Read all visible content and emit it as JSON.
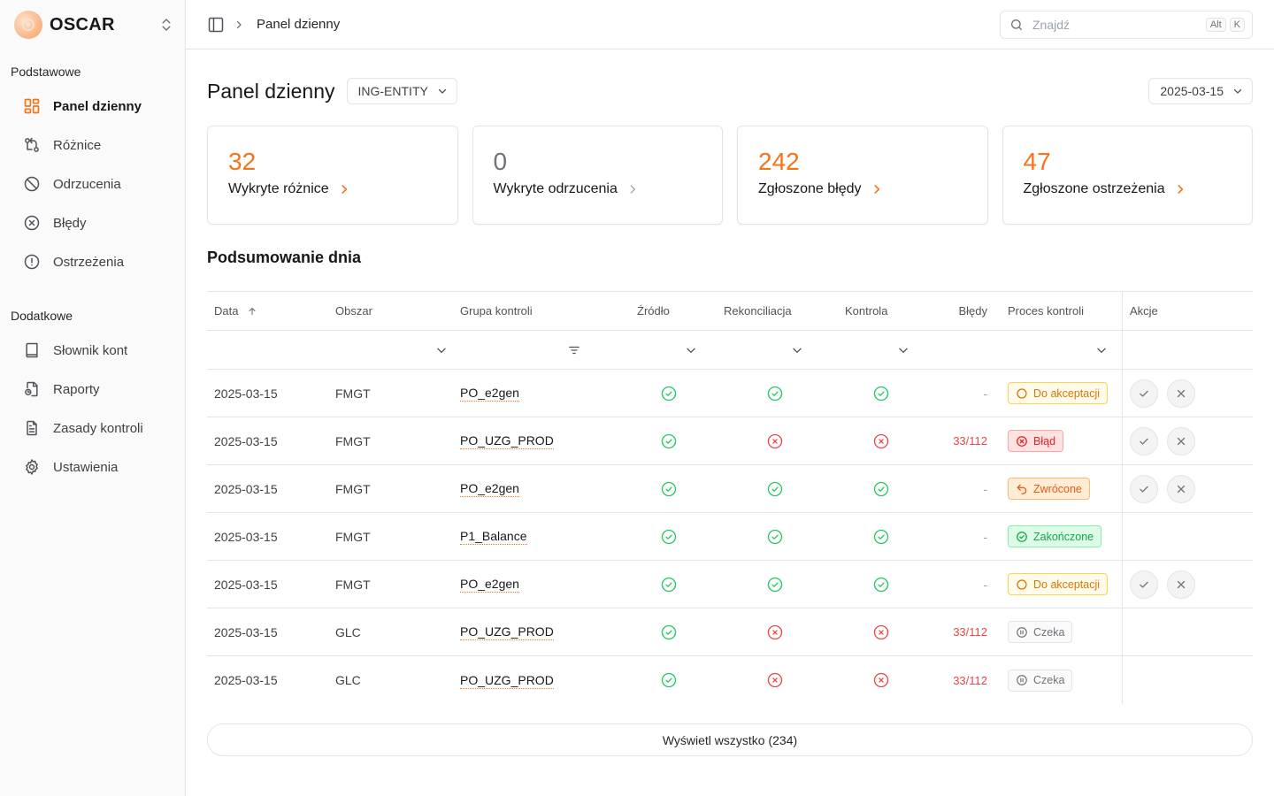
{
  "app": {
    "name": "OSCAR"
  },
  "sidebar": {
    "section_basic": "Podstawowe",
    "section_extra": "Dodatkowe",
    "basic_items": [
      {
        "label": "Panel dzienny",
        "icon": "dashboard-icon",
        "active": true
      },
      {
        "label": "Różnice",
        "icon": "git-compare-icon"
      },
      {
        "label": "Odrzucenia",
        "icon": "ban-icon"
      },
      {
        "label": "Błędy",
        "icon": "x-circle-icon"
      },
      {
        "label": "Ostrzeżenia",
        "icon": "alert-circle-icon"
      }
    ],
    "extra_items": [
      {
        "label": "Słownik kont",
        "icon": "book-icon"
      },
      {
        "label": "Raporty",
        "icon": "report-icon"
      },
      {
        "label": "Zasady kontroli",
        "icon": "document-icon"
      },
      {
        "label": "Ustawienia",
        "icon": "gear-icon"
      }
    ]
  },
  "topbar": {
    "breadcrumb": "Panel dzienny",
    "search_placeholder": "Znajdź",
    "shortcut_alt": "Alt",
    "shortcut_key": "K"
  },
  "page": {
    "title": "Panel dzienny",
    "entity": "ING-ENTITY",
    "date": "2025-03-15",
    "summary_title": "Podsumowanie dnia",
    "view_all": "Wyświetl wszystko (234)"
  },
  "cards": [
    {
      "value": "32",
      "label": "Wykryte różnice",
      "accent": "#f97316"
    },
    {
      "value": "0",
      "label": "Wykryte odrzucenia",
      "accent": "#71717a"
    },
    {
      "value": "242",
      "label": "Zgłoszone błędy",
      "accent": "#f97316"
    },
    {
      "value": "47",
      "label": "Zgłoszone ostrzeżenia",
      "accent": "#f97316"
    }
  ],
  "table": {
    "columns": {
      "date": "Data",
      "area": "Obszar",
      "group": "Grupa kontroli",
      "source": "Źródło",
      "reconciliation": "Rekonciliacja",
      "control": "Kontrola",
      "errors": "Błędy",
      "process": "Proces kontroli",
      "actions": "Akcje"
    },
    "rows": [
      {
        "date": "2025-03-15",
        "area": "FMGT",
        "group": "PO_e2gen",
        "source": "ok",
        "reconciliation": "ok",
        "control": "ok",
        "errors": "-",
        "process": "Do akceptacji",
        "process_type": "pending",
        "actions": true
      },
      {
        "date": "2025-03-15",
        "area": "FMGT",
        "group": "PO_UZG_PROD",
        "source": "ok",
        "reconciliation": "fail",
        "control": "fail",
        "errors": "33/112",
        "process": "Błąd",
        "process_type": "error",
        "actions": true
      },
      {
        "date": "2025-03-15",
        "area": "FMGT",
        "group": "PO_e2gen",
        "source": "ok",
        "reconciliation": "ok",
        "control": "ok",
        "errors": "-",
        "process": "Zwrócone",
        "process_type": "returned",
        "actions": true
      },
      {
        "date": "2025-03-15",
        "area": "FMGT",
        "group": "P1_Balance",
        "source": "ok",
        "reconciliation": "ok",
        "control": "ok",
        "errors": "-",
        "process": "Zakończone",
        "process_type": "done",
        "actions": false
      },
      {
        "date": "2025-03-15",
        "area": "FMGT",
        "group": "PO_e2gen",
        "source": "ok",
        "reconciliation": "ok",
        "control": "ok",
        "errors": "-",
        "process": "Do akceptacji",
        "process_type": "pending",
        "actions": true
      },
      {
        "date": "2025-03-15",
        "area": "GLC",
        "group": "PO_UZG_PROD",
        "source": "ok",
        "reconciliation": "fail",
        "control": "fail",
        "errors": "33/112",
        "process": "Czeka",
        "process_type": "wait",
        "actions": false
      },
      {
        "date": "2025-03-15",
        "area": "GLC",
        "group": "PO_UZG_PROD",
        "source": "ok",
        "reconciliation": "fail",
        "control": "fail",
        "errors": "33/112",
        "process": "Czeka",
        "process_type": "wait",
        "actions": false
      }
    ]
  },
  "colors": {
    "accent": "#f97316",
    "success": "#22c55e",
    "danger": "#ef4444",
    "warning": "#f59e0b"
  }
}
